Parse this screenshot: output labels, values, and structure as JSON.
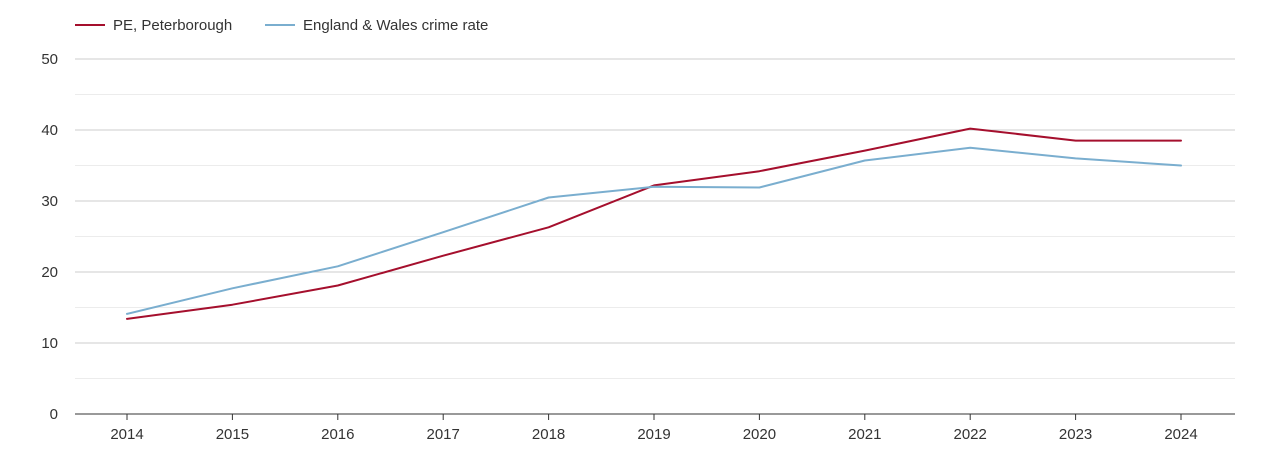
{
  "chart_data": {
    "type": "line",
    "x": [
      "2014",
      "2015",
      "2016",
      "2017",
      "2018",
      "2019",
      "2020",
      "2021",
      "2022",
      "2023",
      "2024"
    ],
    "series": [
      {
        "name": "PE, Peterborough",
        "color": "#a50f2d",
        "values": [
          13.4,
          15.4,
          18.1,
          22.3,
          26.3,
          32.2,
          34.2,
          37.1,
          40.2,
          38.5,
          38.5
        ]
      },
      {
        "name": "England & Wales crime rate",
        "color": "#7aaecf",
        "values": [
          14.1,
          17.7,
          20.8,
          25.6,
          30.5,
          32.0,
          31.9,
          35.7,
          37.5,
          36.0,
          35.0
        ]
      }
    ],
    "ylim": [
      0,
      50
    ],
    "yticks": [
      "0",
      "10",
      "20",
      "30",
      "40",
      "50"
    ],
    "grid": true,
    "legend_position": "top-left"
  }
}
